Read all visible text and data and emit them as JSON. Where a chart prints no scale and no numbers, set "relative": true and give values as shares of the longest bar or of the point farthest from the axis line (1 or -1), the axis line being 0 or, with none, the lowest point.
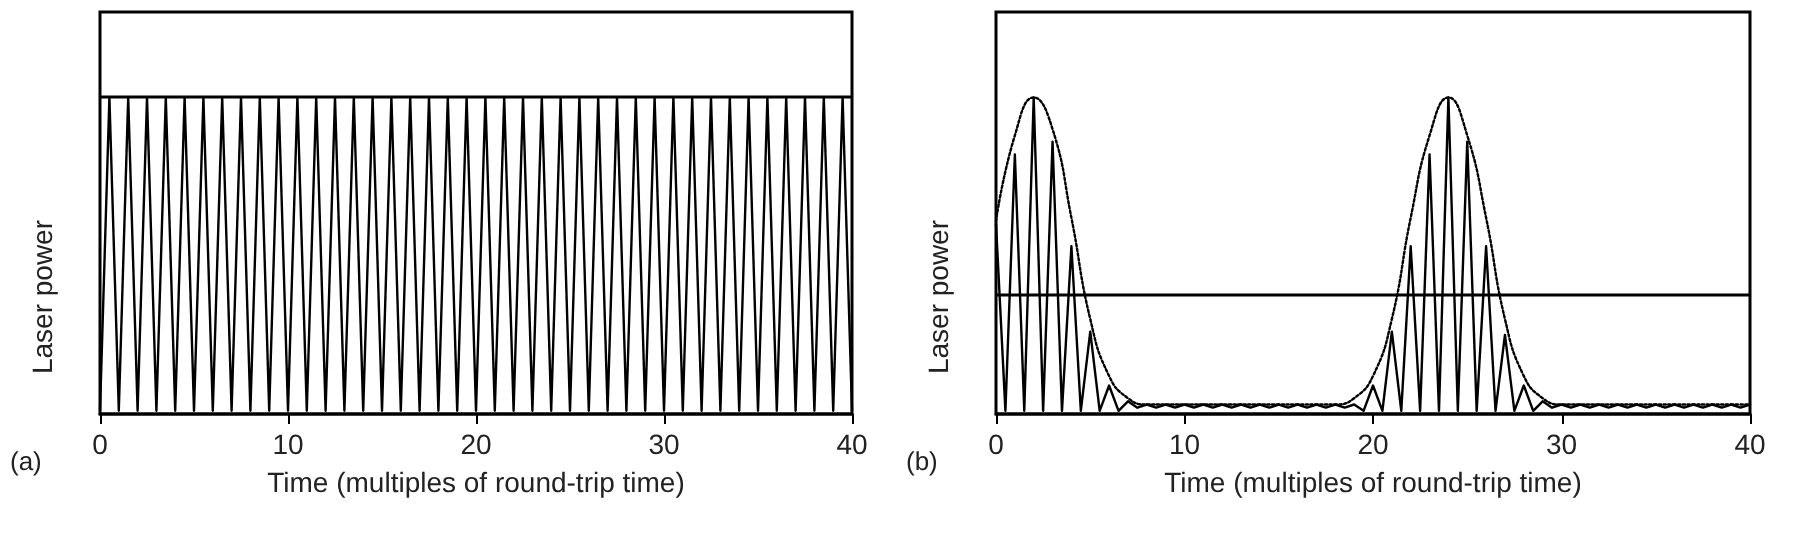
{
  "chart_data": [
    {
      "type": "line",
      "relative": true,
      "xlabel": "Time (multiples of round-trip time)",
      "ylabel": "Laser power",
      "annotations": [
        "(a)"
      ],
      "xlim": [
        0,
        40
      ],
      "xticks": [
        0,
        10,
        20,
        30,
        40
      ],
      "grid": false,
      "marker": "none",
      "line_style": "solid",
      "ref_lines": [
        {
          "axis": "y",
          "value": 1,
          "color": "#000000"
        }
      ],
      "series": [
        {
          "color": "#000000",
          "x": [
            0,
            0.5,
            1,
            1.5,
            2,
            2.5,
            3,
            3.5,
            4,
            4.5,
            5,
            5.5,
            6,
            6.5,
            7,
            7.5,
            8,
            8.5,
            9,
            9.5,
            10,
            10.5,
            11,
            11.5,
            12,
            12.5,
            13,
            13.5,
            14,
            14.5,
            15,
            15.5,
            16,
            16.5,
            17,
            17.5,
            18,
            18.5,
            19,
            19.5,
            20,
            20.5,
            21,
            21.5,
            22,
            22.5,
            23,
            23.5,
            24,
            24.5,
            25,
            25.5,
            26,
            26.5,
            27,
            27.5,
            28,
            28.5,
            29,
            29.5,
            30,
            30.5,
            31,
            31.5,
            32,
            32.5,
            33,
            33.5,
            34,
            34.5,
            35,
            35.5,
            36,
            36.5,
            37,
            37.5,
            38,
            38.5,
            39,
            39.5,
            40
          ],
          "values": [
            0.01,
            1,
            0.01,
            1,
            0.01,
            1,
            0.01,
            1,
            0.01,
            1,
            0.01,
            1,
            0.01,
            1,
            0.01,
            1,
            0.01,
            1,
            0.01,
            1,
            0.01,
            1,
            0.01,
            1,
            0.01,
            1,
            0.01,
            1,
            0.01,
            1,
            0.01,
            1,
            0.01,
            1,
            0.01,
            1,
            0.01,
            1,
            0.01,
            1,
            0.01,
            1,
            0.01,
            1,
            0.01,
            1,
            0.01,
            1,
            0.01,
            1,
            0.01,
            1,
            0.01,
            1,
            0.01,
            1,
            0.01,
            1,
            0.01,
            1,
            0.01,
            1,
            0.01,
            1,
            0.01,
            1,
            0.01,
            1,
            0.01,
            1,
            0.01,
            1,
            0.01,
            1,
            0.01,
            1,
            0.01,
            1,
            0.01,
            1,
            0.01
          ]
        }
      ]
    },
    {
      "type": "line",
      "relative": true,
      "xlabel": "Time (multiples of round-trip time)",
      "ylabel": "Laser power",
      "annotations": [
        "(b)"
      ],
      "xlim": [
        0,
        40
      ],
      "xticks": [
        0,
        10,
        20,
        30,
        40
      ],
      "grid": false,
      "marker": "none",
      "ref_lines": [
        {
          "axis": "y",
          "value": 0.38,
          "color": "#000000"
        }
      ],
      "series": [
        {
          "color": "#000000",
          "line_style": "solid",
          "x": [
            0,
            0.5,
            1,
            1.5,
            2,
            2.5,
            3,
            3.5,
            4,
            4.5,
            5,
            5.5,
            6,
            6.5,
            7,
            7.5,
            8,
            8.5,
            9,
            9.5,
            10,
            10.5,
            11,
            11.5,
            12,
            12.5,
            13,
            13.5,
            14,
            14.5,
            15,
            15.5,
            16,
            16.5,
            17,
            17.5,
            18,
            18.5,
            19,
            19.5,
            20,
            20.5,
            21,
            21.5,
            22,
            22.5,
            23,
            23.5,
            24,
            24.5,
            25,
            25.5,
            26,
            26.5,
            27,
            27.5,
            28,
            28.5,
            29,
            29.5,
            30,
            30.5,
            31,
            31.5,
            32,
            32.5,
            33,
            33.5,
            34,
            34.5,
            35,
            35.5,
            36,
            36.5,
            37,
            37.5,
            38,
            38.5,
            39,
            39.5,
            40
          ],
          "values": [
            0.6,
            0.01,
            0.82,
            0.01,
            1,
            0.01,
            0.86,
            0.01,
            0.53,
            0.01,
            0.26,
            0.01,
            0.09,
            0.01,
            0.04,
            0.02,
            0.03,
            0.02,
            0.03,
            0.02,
            0.03,
            0.02,
            0.03,
            0.02,
            0.03,
            0.02,
            0.03,
            0.02,
            0.03,
            0.02,
            0.03,
            0.02,
            0.03,
            0.02,
            0.03,
            0.02,
            0.03,
            0.02,
            0.03,
            0.01,
            0.09,
            0.01,
            0.26,
            0.01,
            0.53,
            0.01,
            0.82,
            0.01,
            1,
            0.01,
            0.86,
            0.01,
            0.53,
            0.01,
            0.25,
            0.01,
            0.09,
            0.01,
            0.04,
            0.02,
            0.03,
            0.02,
            0.03,
            0.02,
            0.03,
            0.02,
            0.03,
            0.02,
            0.03,
            0.02,
            0.03,
            0.02,
            0.03,
            0.02,
            0.03,
            0.02,
            0.03,
            0.02,
            0.03,
            0.02,
            0.03
          ]
        },
        {
          "color": "#000000",
          "line_style": "dotted",
          "x": [
            0,
            1,
            2,
            3,
            4,
            5,
            6,
            7,
            8,
            9,
            10,
            11,
            12,
            13,
            14,
            15,
            16,
            17,
            18,
            19,
            20,
            21,
            22,
            23,
            24,
            25,
            26,
            27,
            28,
            29,
            30,
            31,
            32,
            33,
            34,
            35,
            36,
            37,
            38,
            39,
            40
          ],
          "values": [
            0.61,
            0.88,
            1,
            0.9,
            0.62,
            0.3,
            0.12,
            0.05,
            0.03,
            0.03,
            0.03,
            0.03,
            0.03,
            0.03,
            0.03,
            0.03,
            0.03,
            0.03,
            0.03,
            0.05,
            0.12,
            0.3,
            0.62,
            0.88,
            1,
            0.88,
            0.62,
            0.3,
            0.12,
            0.05,
            0.03,
            0.03,
            0.03,
            0.03,
            0.03,
            0.03,
            0.03,
            0.03,
            0.03,
            0.03,
            0.03
          ]
        }
      ]
    }
  ]
}
